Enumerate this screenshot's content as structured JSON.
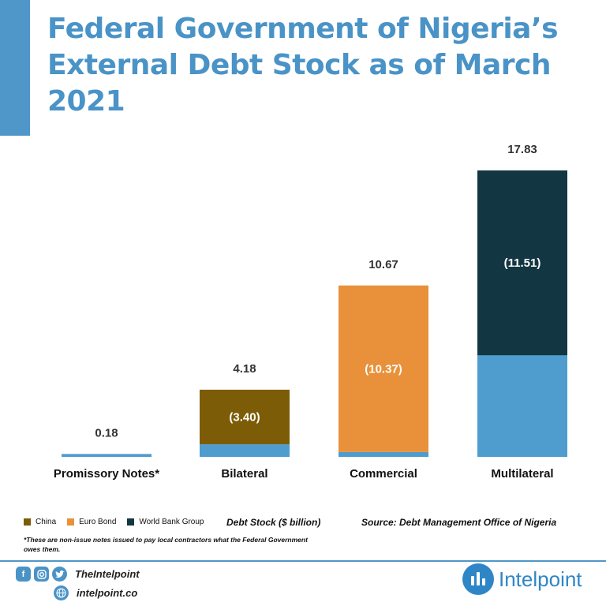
{
  "title": "Federal Government of Nigeria’s External Debt Stock as of March 2021",
  "legend": [
    {
      "label": "China",
      "color": "#7d5c08"
    },
    {
      "label": "Euro Bond",
      "color": "#e8913a"
    },
    {
      "label": "World Bank Group",
      "color": "#123742"
    }
  ],
  "unit_label": "Debt Stock ($ billion)",
  "source": "Source: Debt Management Office of Nigeria",
  "footnote": "*These are non-issue notes issued to pay local contractors what the Federal Government owes them.",
  "footer": {
    "social_handle": "TheIntelpoint",
    "website": "intelpoint.co",
    "brand": "Intelpoint"
  },
  "chart_data": {
    "type": "bar",
    "stacked": true,
    "categories": [
      "Promissory Notes*",
      "Bilateral",
      "Commercial",
      "Multilateral"
    ],
    "totals": [
      0.18,
      4.18,
      10.67,
      17.83
    ],
    "total_labels": [
      "0.18",
      "4.18",
      "10.67",
      "17.83"
    ],
    "highlight": [
      {
        "category": "Bilateral",
        "value": 3.4,
        "label": "(3.40)",
        "legend": "China"
      },
      {
        "category": "Commercial",
        "value": 10.37,
        "label": "(10.37)",
        "legend": "Euro Bond"
      },
      {
        "category": "Multilateral",
        "value": 11.51,
        "label": "(11.51)",
        "legend": "World Bank Group"
      }
    ],
    "base_color": "#4f9ccf",
    "colors": {
      "China": "#7d5c08",
      "Euro Bond": "#e8913a",
      "World Bank Group": "#123742"
    },
    "ylim": [
      0,
      17.83
    ],
    "grid": false
  }
}
